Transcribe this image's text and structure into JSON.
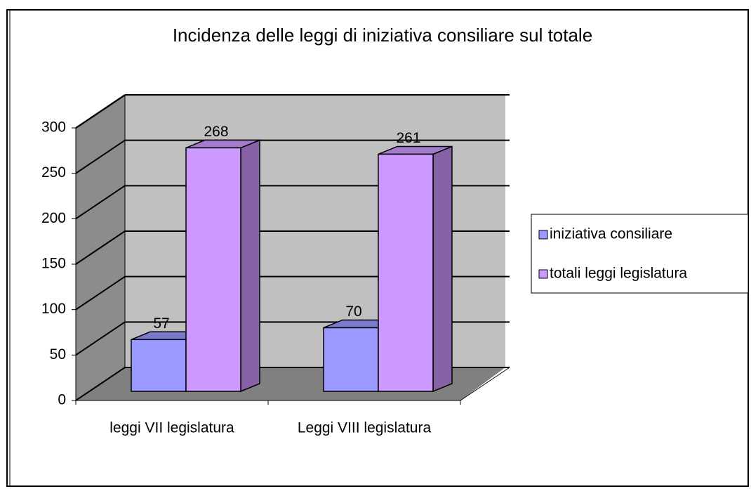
{
  "chart_data": {
    "type": "bar3d",
    "title": "Incidenza delle leggi di iniziativa consiliare sul totale",
    "categories": [
      "leggi VII legislatura",
      "Leggi VIII legislatura"
    ],
    "series": [
      {
        "name": "iniziativa consiliare",
        "color": "#9999ff",
        "values": [
          57,
          70
        ]
      },
      {
        "name": "totali leggi legislatura",
        "color": "#cc99ff",
        "values": [
          268,
          261
        ]
      }
    ],
    "ylim": [
      0,
      300
    ],
    "yticks": [
      0,
      50,
      100,
      150,
      200,
      250,
      300
    ],
    "grid": true,
    "legend": "right"
  }
}
